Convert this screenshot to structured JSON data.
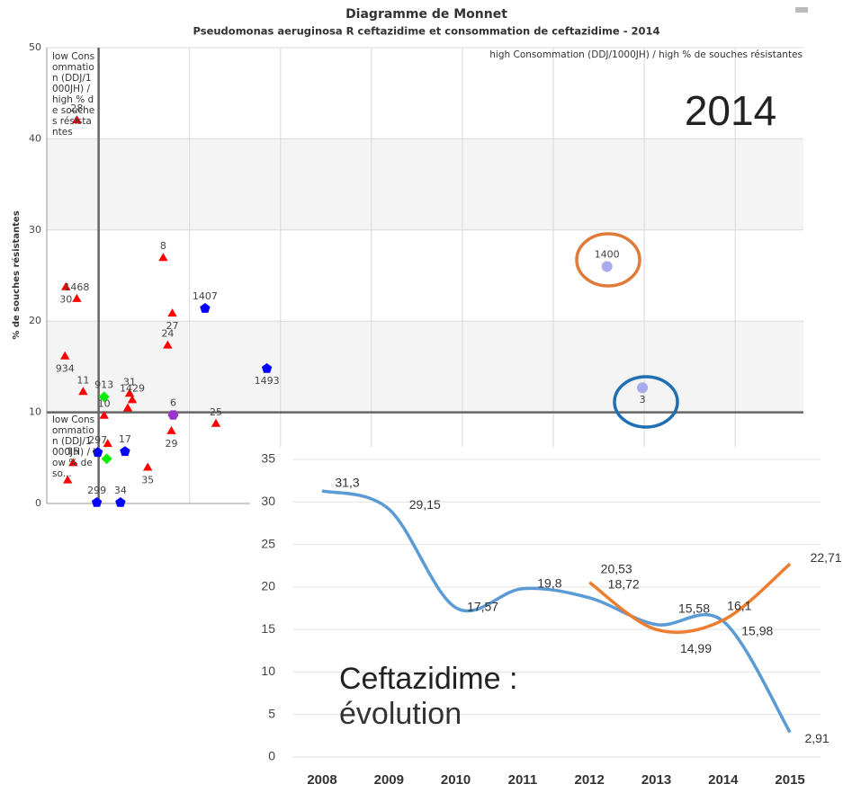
{
  "chart_data": [
    {
      "type": "scatter",
      "title": "Diagramme de Monnet",
      "subtitle": "Pseudomonas aeruginosa R ceftazidime et consommation de ceftazidime - 2014",
      "y_label": "% de souches résistantes",
      "ylim": [
        0,
        50
      ],
      "yticks": [
        0,
        10,
        20,
        30,
        40,
        50
      ],
      "xlim": [
        0.43,
        8.75
      ],
      "xticks": [
        2,
        3,
        4,
        5,
        6,
        7,
        8
      ],
      "grid": true,
      "thresholds": {
        "x": 1,
        "y": 10
      },
      "quadrant_labels": {
        "top_left": "low Consommation (DDJ/1000JH) / high % de souches résistantes",
        "top_right": "high Consommation (DDJ/1000JH) / high % de souches résistantes",
        "bottom_left": "low Consommation (DDJ/1000JH) / low % de so..."
      },
      "annotation": "2014",
      "points": [
        {
          "label": "28",
          "x": 0.76,
          "y": 42.0,
          "color": "#ff0000",
          "shape": "triangle"
        },
        {
          "label": "30",
          "x": 0.64,
          "y": 23.7,
          "color": "#ff0000",
          "shape": "triangle"
        },
        {
          "label": "1468",
          "x": 0.76,
          "y": 22.4,
          "color": "#ff0000",
          "shape": "triangle"
        },
        {
          "label": "934",
          "x": 0.63,
          "y": 16.1,
          "color": "#ff0000",
          "shape": "triangle"
        },
        {
          "label": "11",
          "x": 0.83,
          "y": 12.2,
          "color": "#ff0000",
          "shape": "triangle"
        },
        {
          "label": "8",
          "x": 1.71,
          "y": 26.9,
          "color": "#ff0000",
          "shape": "triangle"
        },
        {
          "label": "27",
          "x": 1.81,
          "y": 20.8,
          "color": "#ff0000",
          "shape": "triangle"
        },
        {
          "label": "24",
          "x": 1.76,
          "y": 17.3,
          "color": "#ff0000",
          "shape": "triangle"
        },
        {
          "label": "31",
          "x": 1.34,
          "y": 12.0,
          "color": "#ff0000",
          "shape": "triangle"
        },
        {
          "label": "1429",
          "x": 1.37,
          "y": 11.3,
          "color": "#ff0000",
          "shape": "triangle"
        },
        {
          "x": 1.32,
          "y": 10.4,
          "color": "#ff0000",
          "shape": "triangle"
        },
        {
          "label": "10",
          "x": 1.06,
          "y": 9.6,
          "color": "#ff0000",
          "shape": "triangle"
        },
        {
          "x": 1.1,
          "y": 6.5,
          "color": "#ff0000",
          "shape": "triangle"
        },
        {
          "label": "15",
          "x": 0.72,
          "y": 4.4,
          "color": "#ff0000",
          "shape": "triangle"
        },
        {
          "x": 0.66,
          "y": 2.5,
          "color": "#ff0000",
          "shape": "triangle"
        },
        {
          "label": "29",
          "x": 1.8,
          "y": 7.9,
          "color": "#ff0000",
          "shape": "triangle"
        },
        {
          "label": "25",
          "x": 2.29,
          "y": 8.7,
          "color": "#ff0000",
          "shape": "triangle"
        },
        {
          "label": "35",
          "x": 1.54,
          "y": 3.9,
          "color": "#ff0000",
          "shape": "triangle"
        },
        {
          "label": "1407",
          "x": 2.17,
          "y": 21.4,
          "color": "#0000ff",
          "shape": "pentagon"
        },
        {
          "label": "1493",
          "x": 2.85,
          "y": 14.8,
          "color": "#0000ff",
          "shape": "pentagon"
        },
        {
          "label": "17",
          "x": 1.29,
          "y": 5.7,
          "color": "#0000ff",
          "shape": "pentagon"
        },
        {
          "label": "297",
          "x": 0.99,
          "y": 5.6,
          "color": "#0000ff",
          "shape": "pentagon"
        },
        {
          "label": "299",
          "x": 0.98,
          "y": 0.1,
          "color": "#0000ff",
          "shape": "pentagon"
        },
        {
          "label": "34",
          "x": 1.24,
          "y": 0.1,
          "color": "#0000ff",
          "shape": "pentagon"
        },
        {
          "label": "913",
          "x": 1.06,
          "y": 11.7,
          "color": "#00ee00",
          "shape": "diamond"
        },
        {
          "x": 1.09,
          "y": 4.9,
          "color": "#00ee00",
          "shape": "diamond"
        },
        {
          "label": "6",
          "x": 1.82,
          "y": 9.7,
          "color": "#9933cc",
          "shape": "hexagon"
        },
        {
          "label": "1400",
          "x": 6.59,
          "y": 26.0,
          "color": "#aaaaee",
          "shape": "circle"
        },
        {
          "label": "3",
          "x": 6.98,
          "y": 12.7,
          "color": "#aaaaee",
          "shape": "circle"
        }
      ]
    },
    {
      "type": "line",
      "categories": [
        "2008",
        "2009",
        "2010",
        "2011",
        "2012",
        "2013",
        "2014",
        "2015"
      ],
      "ylim": [
        0,
        35
      ],
      "yticks": [
        0,
        5,
        10,
        15,
        20,
        25,
        30,
        35
      ],
      "grid": true,
      "annotation_title": "Ceftazidime :",
      "annotation_subtitle": "évolution",
      "series": [
        {
          "color": "#5b9bd5",
          "values": [
            31.3,
            29.15,
            17.57,
            19.8,
            18.72,
            15.58,
            15.98,
            2.91
          ],
          "value_labels": [
            "31,3",
            "29,15",
            "17,57",
            "19,8",
            "18,72",
            "15,58",
            "15,98",
            "2,91"
          ]
        },
        {
          "color": "#ed7d31",
          "values": [
            null,
            null,
            null,
            null,
            20.53,
            14.99,
            16.1,
            22.71
          ],
          "value_labels": [
            null,
            null,
            null,
            null,
            "20,53",
            "14,99",
            "16,1",
            "22,71"
          ]
        }
      ]
    }
  ]
}
